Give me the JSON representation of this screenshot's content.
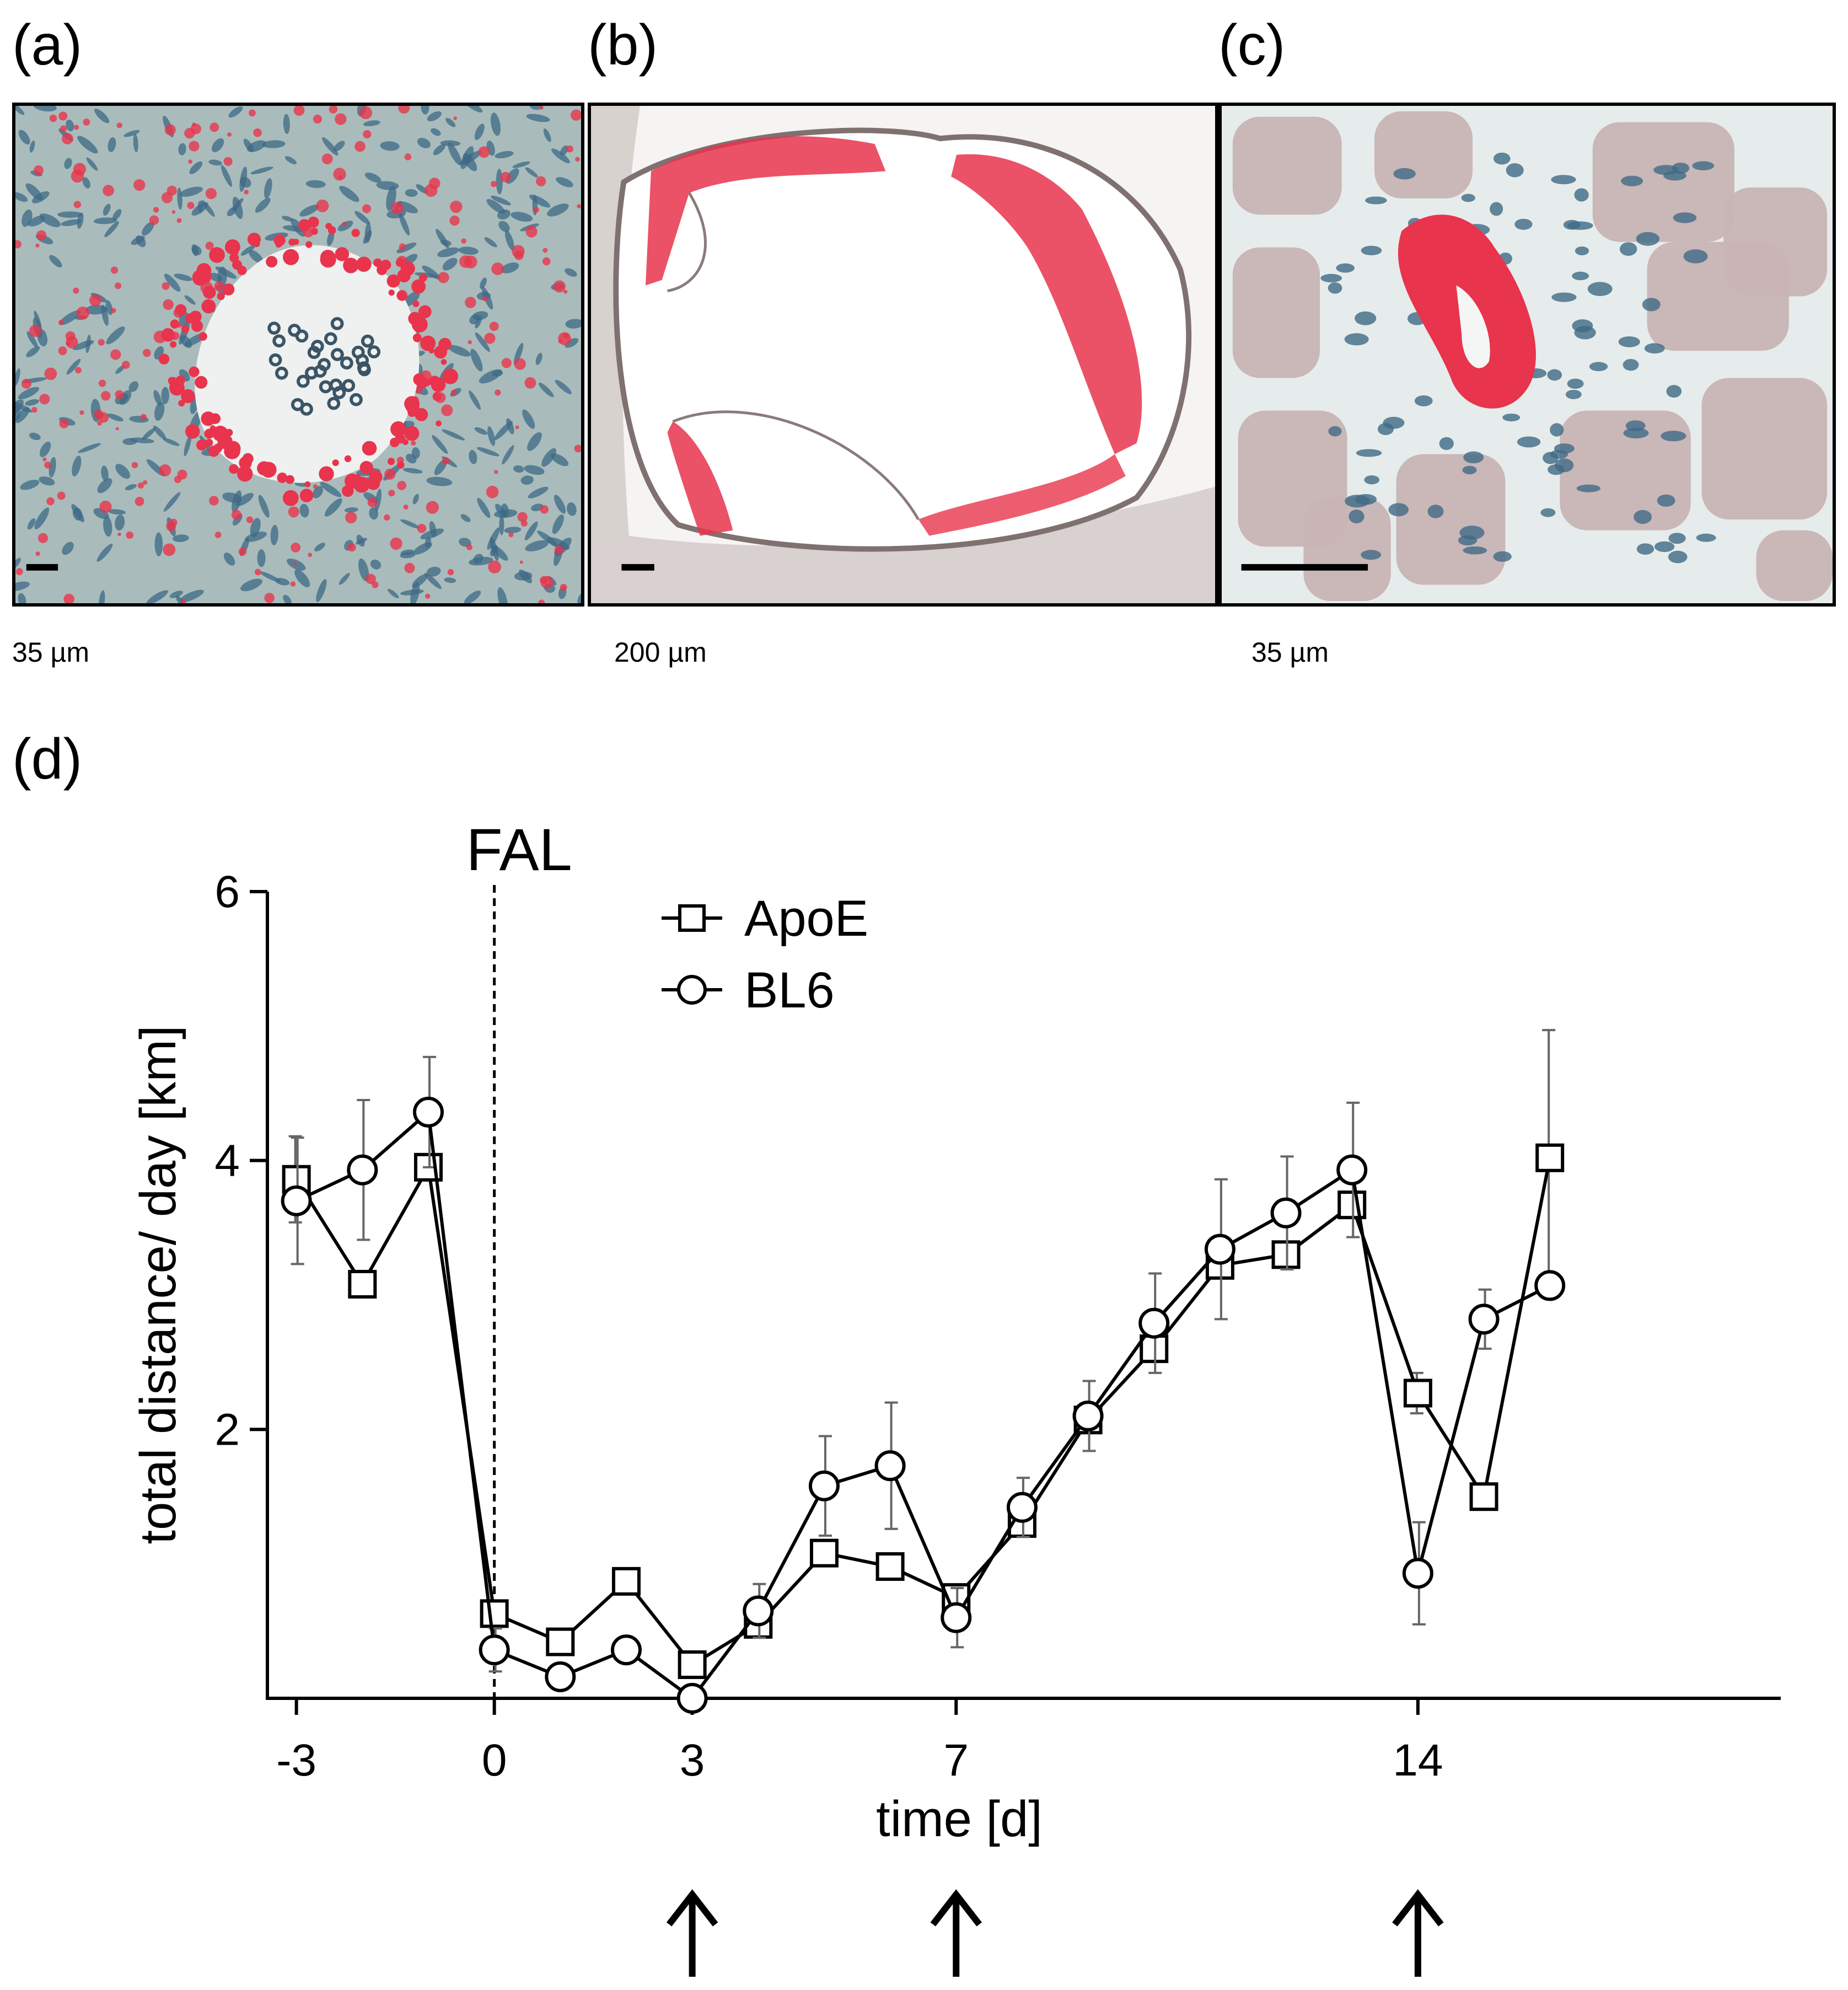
{
  "panels": {
    "a": {
      "label": "(a)",
      "scale_text": "35 µm"
    },
    "b": {
      "label": "(b)",
      "scale_text": "200 µm"
    },
    "c": {
      "label": "(c)",
      "scale_text": "35 µm"
    },
    "d": {
      "label": "(d)"
    }
  },
  "colors": {
    "stain_red": "#e8344c",
    "nucleus_blue": "#3e6a86",
    "tissue_grey": "#a9bcbb",
    "muscle_pink": "#c8b4b4",
    "line": "#000000"
  },
  "chart_data": {
    "type": "line",
    "xlabel": "time [d]",
    "ylabel": "total distance/ day  [km]",
    "xlim": [
      -4,
      19.5
    ],
    "ylim": [
      0,
      6
    ],
    "x_ticks": [
      -3,
      0,
      3,
      7,
      14
    ],
    "x_tick_labels": [
      "-3",
      "0",
      "3",
      "7",
      "14"
    ],
    "y_ticks": [
      2,
      4,
      6
    ],
    "y_tick_labels": [
      "2",
      "4",
      "6"
    ],
    "legend": {
      "position": "top-center"
    },
    "annotation": {
      "text": "FAL",
      "x": 0
    },
    "arrows_x": [
      3,
      7,
      14
    ],
    "series": [
      {
        "name": "ApoE",
        "marker": "square",
        "x": [
          -3,
          -2,
          -1,
          0,
          1,
          2,
          3,
          4,
          5,
          6,
          7,
          8,
          9,
          10,
          11,
          12,
          13,
          14,
          15,
          16
        ],
        "y": [
          3.86,
          3.08,
          3.95,
          0.63,
          0.42,
          0.87,
          0.25,
          0.55,
          1.08,
          0.98,
          0.75,
          1.3,
          2.07,
          2.6,
          3.22,
          3.3,
          3.67,
          2.27,
          1.5,
          4.02
        ],
        "err": [
          0.32,
          0.0,
          0.0,
          0.0,
          0.0,
          0.0,
          0.0,
          0.0,
          0.0,
          0.0,
          0.0,
          0.0,
          0.0,
          0.0,
          0.0,
          0.0,
          0.0,
          0.15,
          0.0,
          0.95
        ]
      },
      {
        "name": "BL6",
        "marker": "circle",
        "x": [
          -3,
          -2,
          -1,
          0,
          1,
          2,
          3,
          4,
          5,
          6,
          7,
          8,
          9,
          10,
          11,
          12,
          13,
          14,
          15,
          16
        ],
        "y": [
          3.7,
          3.93,
          4.36,
          0.36,
          0.16,
          0.36,
          0.0,
          0.65,
          1.58,
          1.73,
          0.6,
          1.42,
          2.1,
          2.79,
          3.34,
          3.61,
          3.93,
          0.93,
          2.82,
          3.07
        ],
        "err": [
          0.47,
          0.52,
          0.41,
          0.16,
          0.0,
          0.0,
          0.0,
          0.2,
          0.37,
          0.47,
          0.22,
          0.22,
          0.26,
          0.37,
          0.52,
          0.42,
          0.5,
          0.38,
          0.22,
          0.0
        ]
      }
    ]
  }
}
